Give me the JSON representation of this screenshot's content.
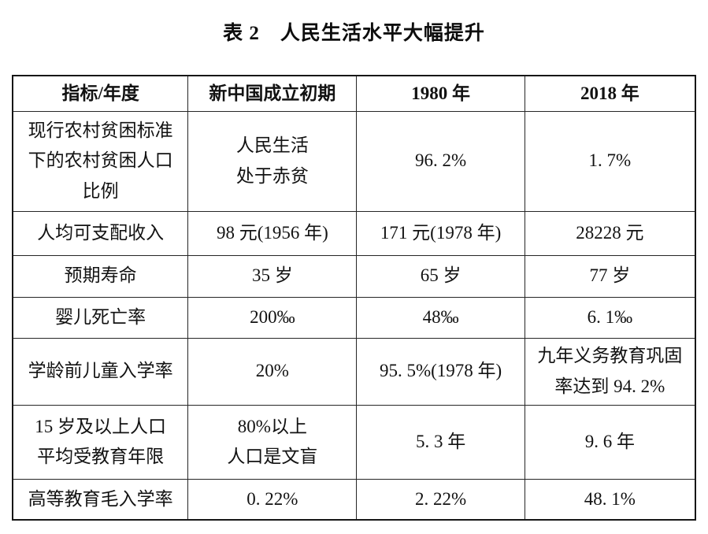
{
  "title": "表 2　人民生活水平大幅提升",
  "table": {
    "headers": [
      "指标/年度",
      "新中国成立初期",
      "1980 年",
      "2018 年"
    ],
    "rows": [
      {
        "cells": [
          "现行农村贫困标准\n下的农村贫困人口\n比例",
          "人民生活\n处于赤贫",
          "96. 2%",
          "1. 7%"
        ]
      },
      {
        "cells": [
          "人均可支配收入",
          "98 元(1956 年)",
          "171 元(1978 年)",
          "28228 元"
        ]
      },
      {
        "cells": [
          "预期寿命",
          "35 岁",
          "65 岁",
          "77 岁"
        ]
      },
      {
        "cells": [
          "婴儿死亡率",
          "200‰",
          "48‰",
          "6. 1‰"
        ]
      },
      {
        "cells": [
          "学龄前儿童入学率",
          "20%",
          "95. 5%(1978 年)",
          "九年义务教育巩固\n率达到 94. 2%"
        ]
      },
      {
        "cells": [
          "15 岁及以上人口\n平均受教育年限",
          "80%以上\n人口是文盲",
          "5. 3 年",
          "9. 6 年"
        ]
      },
      {
        "cells": [
          "高等教育毛入学率",
          "0. 22%",
          "2. 22%",
          "48. 1%"
        ]
      }
    ]
  },
  "colors": {
    "background": "#ffffff",
    "text": "#121212",
    "border": "#161616"
  }
}
